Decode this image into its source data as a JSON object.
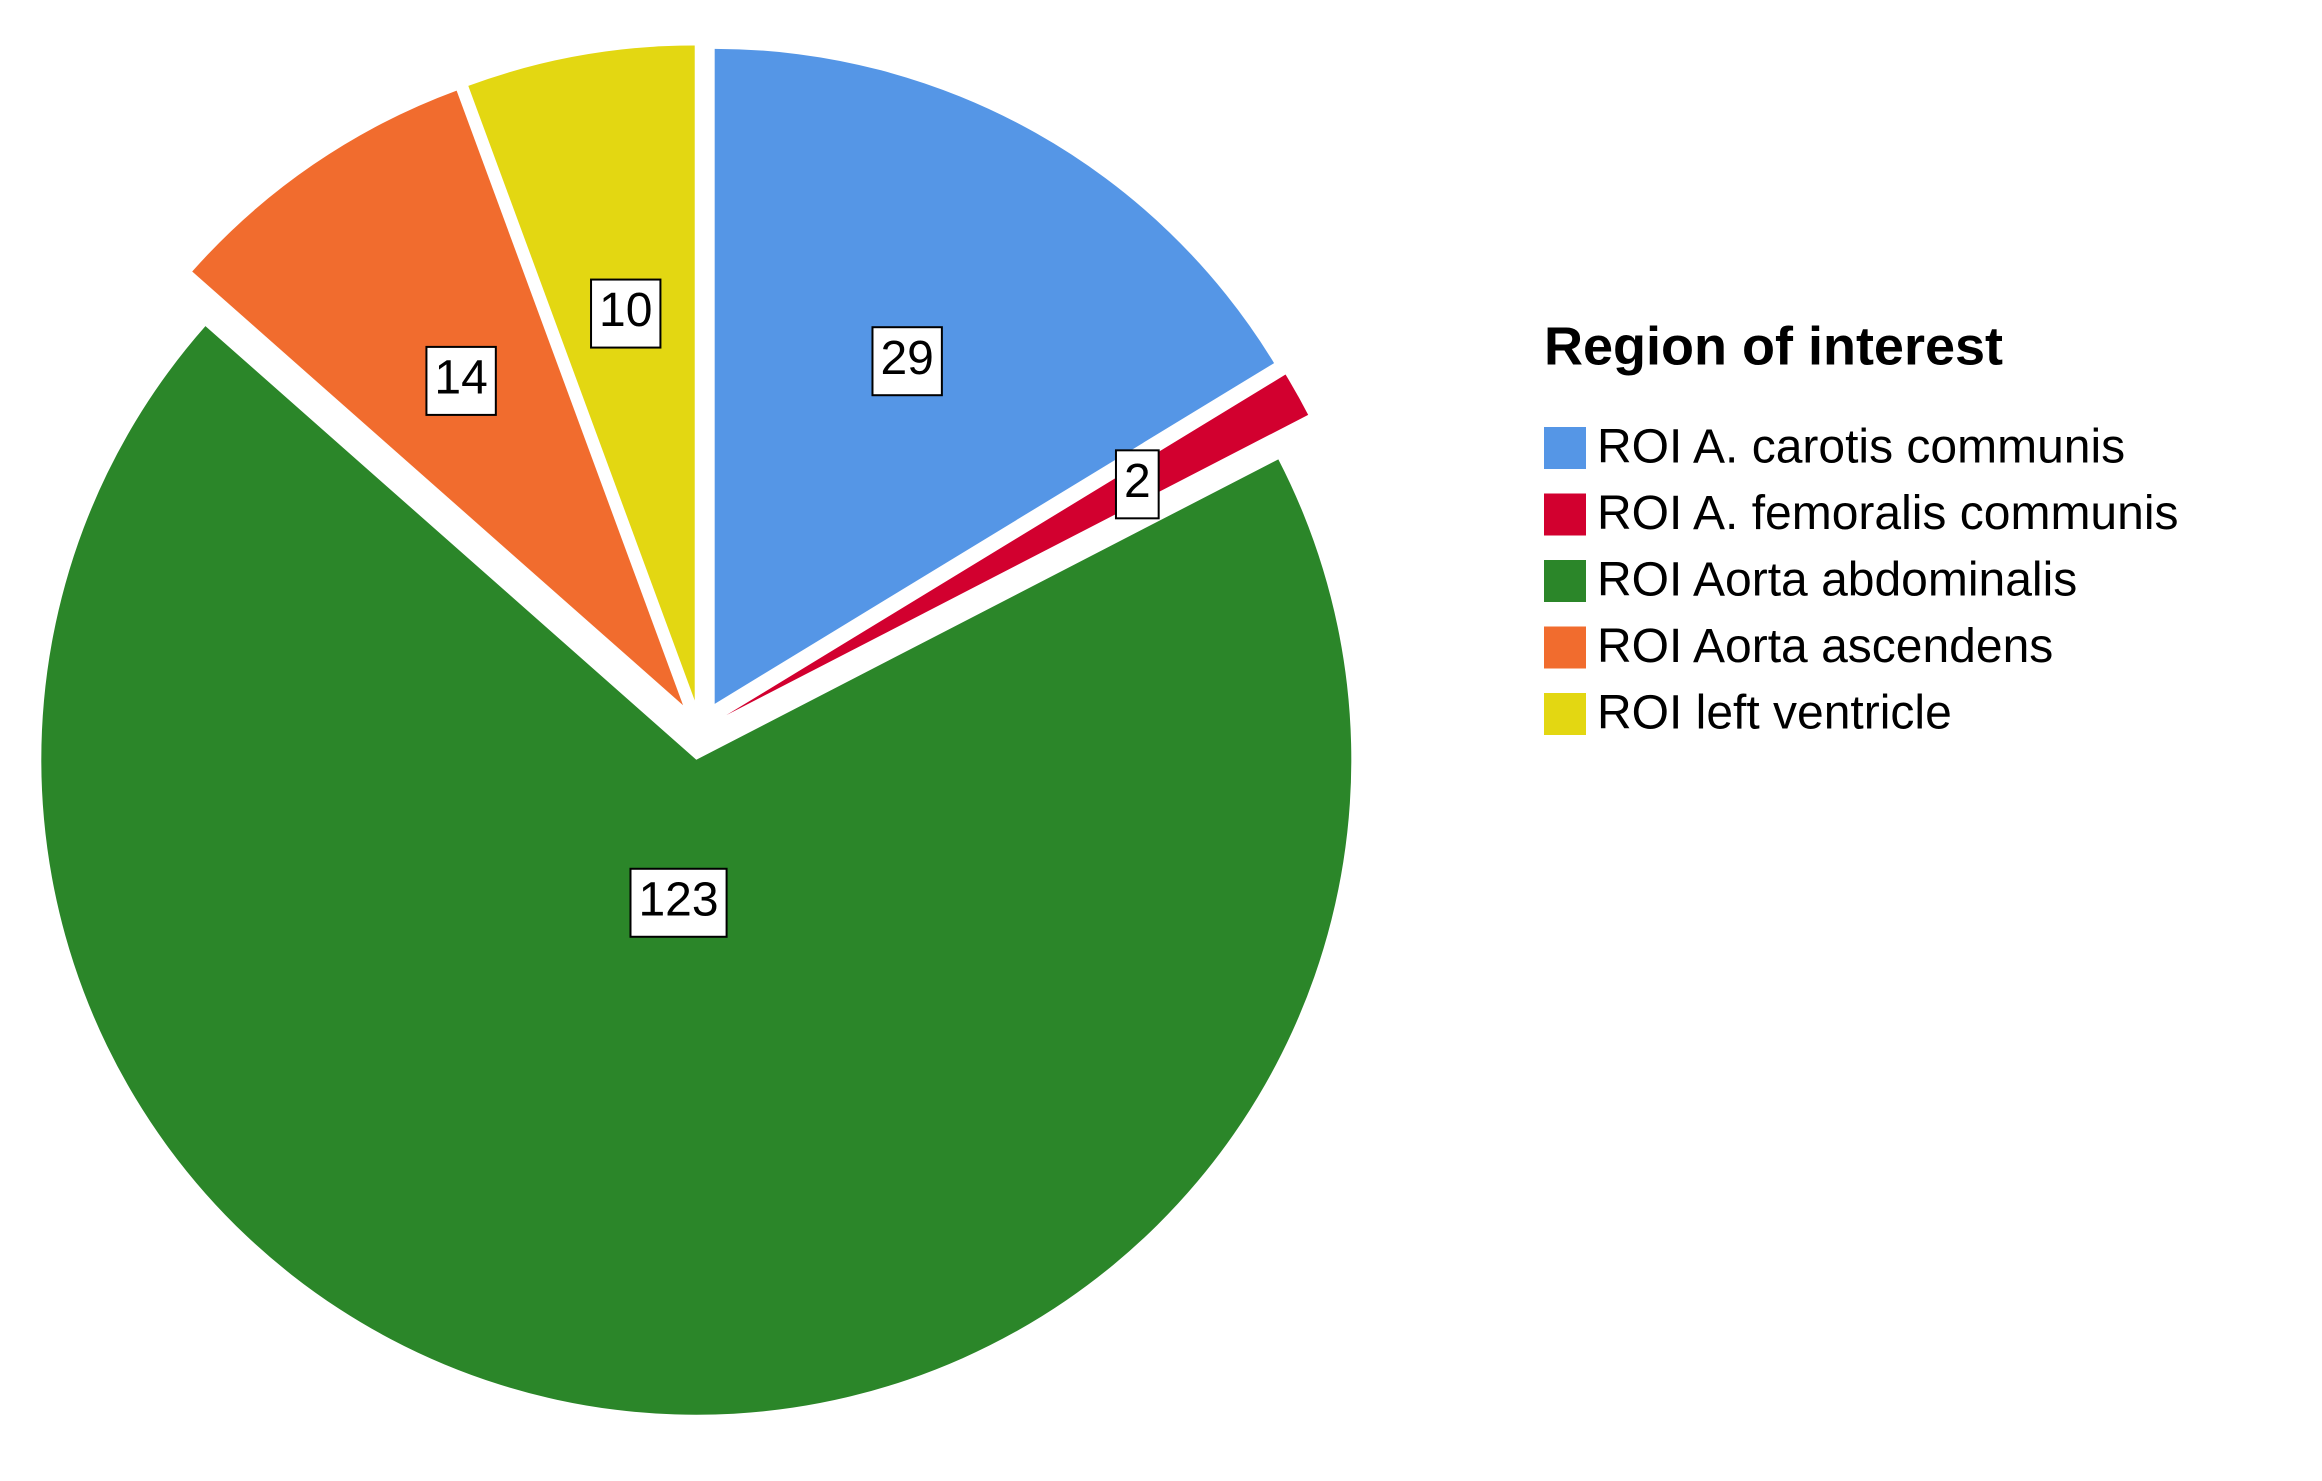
{
  "chart_data": {
    "type": "pie",
    "legend_title": "Region of interest",
    "categories": [
      "ROI A. carotis communis",
      "ROI A. femoralis communis",
      "ROI Aorta abdominalis",
      "ROI Aorta ascendens",
      "ROI left ventricle"
    ],
    "values": [
      29,
      2,
      123,
      14,
      10
    ],
    "colors": [
      "#5596e6",
      "#d2002f",
      "#2b8629",
      "#f16c2e",
      "#e3d712"
    ],
    "legend": "right"
  }
}
